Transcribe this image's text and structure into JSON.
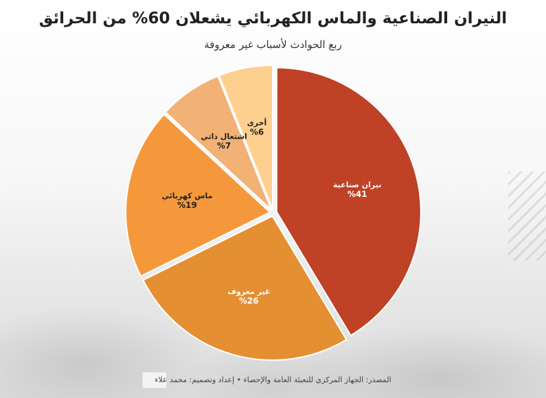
{
  "header": {
    "title": "النيران الصناعية والماس الكهربائي يشعلان 60% من الحرائق",
    "subtitle": "ربع الحوادث لأسباب غير معروفة"
  },
  "footer": {
    "source": "المصدر: الجهاز المركزي للتعبئة العامة والإحصاء • إعداد وتصميم: محمد علاء"
  },
  "chart_data": {
    "type": "pie",
    "title": "النيران الصناعية والماس الكهربائي يشعلان 60% من الحرائق",
    "subtitle": "ربع الحوادث لأسباب غير معروفة",
    "slices": [
      {
        "label": "نيران صناعية",
        "value": 41,
        "value_label": "%41",
        "color": "#bf4126",
        "text_color": "#ffffff"
      },
      {
        "label": "غير معروف",
        "value": 26,
        "value_label": "%26",
        "color": "#e58f33",
        "text_color": "#ffffff"
      },
      {
        "label": "ماس كهربائي",
        "value": 19,
        "value_label": "%19",
        "color": "#f5983b",
        "text_color": "#222222"
      },
      {
        "label": "اشتعال ذاتي",
        "value": 7,
        "value_label": "%7",
        "color": "#f2b175",
        "text_color": "#222222"
      },
      {
        "label": "أخرى",
        "value": 6,
        "value_label": "%6",
        "color": "#fdd08f",
        "text_color": "#222222"
      }
    ],
    "start_angle_deg": 0,
    "direction": "clockwise"
  }
}
